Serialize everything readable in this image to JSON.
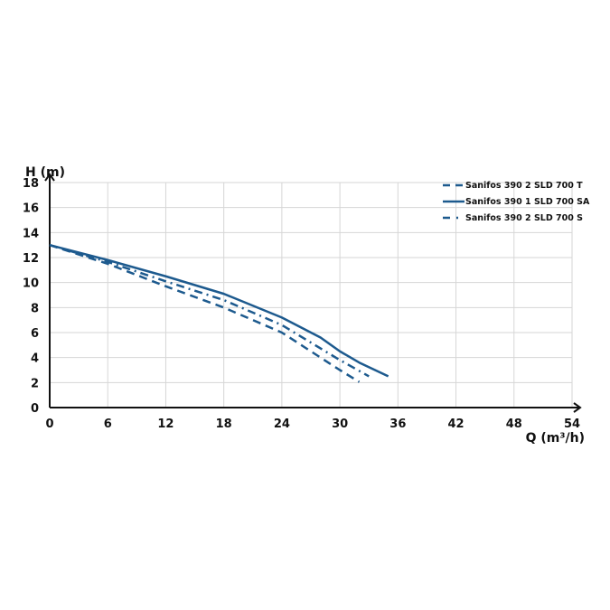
{
  "chart_data": {
    "type": "line",
    "xlabel": "Q (m³/h)",
    "ylabel": "H (m)",
    "xlim": [
      0,
      54
    ],
    "ylim": [
      0,
      18
    ],
    "xticks": [
      0,
      6,
      12,
      18,
      24,
      30,
      36,
      42,
      48,
      54
    ],
    "yticks": [
      0,
      2,
      4,
      6,
      8,
      10,
      12,
      14,
      16,
      18
    ],
    "grid": true,
    "legend": "top-right",
    "color": "#1d5a8e",
    "series": [
      {
        "name": "Sanifos 390 2 SLD 700 T",
        "style": "dashed",
        "x": [
          0,
          6,
          12,
          18,
          24,
          30,
          32
        ],
        "y": [
          13,
          11.5,
          9.7,
          8.0,
          6.0,
          3.0,
          2.05
        ]
      },
      {
        "name": "Sanifos 390 1 SLD 700 SA",
        "style": "solid",
        "x": [
          0,
          6,
          12,
          18,
          24,
          28,
          30,
          32,
          35
        ],
        "y": [
          13,
          11.8,
          10.5,
          9.1,
          7.2,
          5.6,
          4.5,
          3.6,
          2.5
        ]
      },
      {
        "name": "Sanifos 390 2 SLD 700 S",
        "style": "dash-dot",
        "x": [
          0,
          6,
          12,
          18,
          24,
          30,
          33
        ],
        "y": [
          13,
          11.65,
          10.1,
          8.6,
          6.6,
          3.8,
          2.5
        ]
      }
    ]
  }
}
